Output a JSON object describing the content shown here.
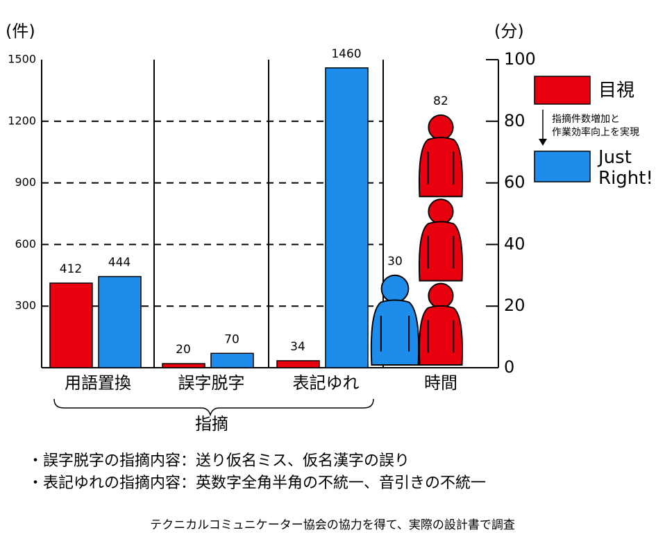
{
  "chart_data": {
    "type": "bar",
    "y_label": "(件)",
    "y2_label": "(分)",
    "categories": [
      "用語置換",
      "誤字脱字",
      "表記ゆれ",
      "時間"
    ],
    "category_axis": [
      "y",
      "y",
      "y",
      "y2"
    ],
    "group_label": "指摘",
    "series": [
      {
        "name": "目視",
        "color": "#e8000f",
        "values": [
          412,
          20,
          34,
          82
        ]
      },
      {
        "name": "Just Right!",
        "color": "#1e8ceb",
        "values": [
          444,
          70,
          1460,
          30
        ]
      }
    ],
    "ylim": [
      0,
      1500
    ],
    "yticks": [
      300,
      600,
      900,
      1200,
      1500
    ],
    "y2lim": [
      0,
      100
    ],
    "y2ticks": [
      0,
      20,
      40,
      60,
      80,
      100
    ],
    "grid": true,
    "legend_note": [
      "指摘件数増加と",
      "作業効率向上を実現"
    ],
    "notes": [
      "・誤字脱字の指摘内容：送り仮名ミス、仮名漢字の誤り",
      "・表記ゆれの指摘内容：英数字全角半角の不統一、音引きの不統一"
    ],
    "footer": "テクニカルコミュニケーター協会の協力を得て、実際の設計書で調査"
  }
}
